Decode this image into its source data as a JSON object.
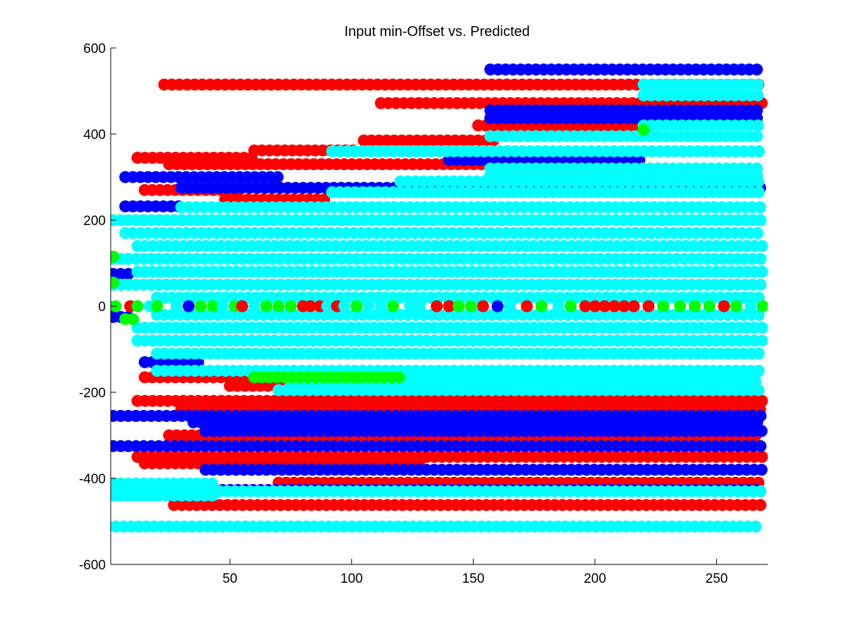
{
  "chart_data": {
    "type": "scatter",
    "title": "Input min-Offset vs. Predicted",
    "xlabel": "",
    "ylabel": "",
    "xlim": [
      1,
      271
    ],
    "ylim": [
      -600,
      600
    ],
    "x_ticks": [
      50,
      100,
      150,
      200,
      250
    ],
    "y_ticks": [
      -600,
      -400,
      -200,
      0,
      200,
      400,
      600
    ],
    "grid": false,
    "legend": "none",
    "colors": {
      "red": "#ff0000",
      "blue": "#0000ff",
      "green": "#00ff00",
      "cyan": "#00ffff",
      "axis": "#000000",
      "background": "#ffffff"
    },
    "marker_spacing_x": 3.13,
    "series": [
      {
        "color": "red",
        "marker": "filled-circle",
        "rows": [
          {
            "y": 515,
            "x": [
              23,
              269
            ]
          },
          {
            "y": 472,
            "x": [
              112,
              269
            ]
          },
          {
            "y": 420,
            "x": [
              152,
              219
            ]
          },
          {
            "y": 385,
            "x": [
              105,
              160
            ]
          },
          {
            "y": 362,
            "x": [
              60,
              103
            ]
          },
          {
            "y": 345,
            "x": [
              12,
              60
            ]
          },
          {
            "y": 330,
            "x": [
              25,
              175
            ]
          },
          {
            "y": 270,
            "x": [
              15,
              55
            ]
          },
          {
            "y": 248,
            "x": [
              48,
              90
            ]
          },
          {
            "y": -165,
            "x": [
              15,
              70
            ]
          },
          {
            "y": -185,
            "x": [
              50,
              99
            ]
          },
          {
            "y": -220,
            "x": [
              12,
              269
            ]
          },
          {
            "y": -240,
            "x": [
              30,
              269
            ]
          },
          {
            "y": -300,
            "x": [
              25,
              269
            ]
          },
          {
            "y": -350,
            "x": [
              12,
              269
            ]
          },
          {
            "y": -365,
            "x": [
              15,
              130
            ]
          },
          {
            "y": -410,
            "x": [
              70,
              269
            ]
          },
          {
            "y": -462,
            "x": [
              27,
              269
            ]
          }
        ]
      },
      {
        "color": "blue",
        "marker": "filled-circle",
        "rows": [
          {
            "y": 550,
            "x": [
              157,
              269
            ]
          },
          {
            "y": 455,
            "x": [
              157,
              269
            ]
          },
          {
            "y": 437,
            "x": [
              157,
              269
            ]
          },
          {
            "y": 340,
            "x": [
              140,
              219
            ]
          },
          {
            "y": 300,
            "x": [
              7,
              70
            ]
          },
          {
            "y": 275,
            "x": [
              30,
              269
            ]
          },
          {
            "y": 232,
            "x": [
              7,
              30
            ]
          },
          {
            "y": 75,
            "x": [
              2,
              10
            ]
          },
          {
            "y": -25,
            "x": [
              2,
              10
            ]
          },
          {
            "y": -130,
            "x": [
              15,
              40
            ]
          },
          {
            "y": -180,
            "x": [
              120,
              170
            ]
          },
          {
            "y": -255,
            "x": [
              2,
              269
            ]
          },
          {
            "y": -270,
            "x": [
              35,
              269
            ]
          },
          {
            "y": -290,
            "x": [
              40,
              269
            ]
          },
          {
            "y": -325,
            "x": [
              2,
              269
            ]
          },
          {
            "y": -380,
            "x": [
              40,
              269
            ]
          },
          {
            "y": -427,
            "x": [
              0,
              269
            ]
          }
        ]
      },
      {
        "color": "cyan",
        "marker": "filled-circle",
        "rows": [
          {
            "y": 515,
            "x": [
              220,
              269
            ]
          },
          {
            "y": 490,
            "x": [
              220,
              269
            ]
          },
          {
            "y": 420,
            "x": [
              220,
              269
            ]
          },
          {
            "y": 395,
            "x": [
              157,
              269
            ]
          },
          {
            "y": 360,
            "x": [
              92,
              269
            ]
          },
          {
            "y": 320,
            "x": [
              157,
              269
            ]
          },
          {
            "y": 305,
            "x": [
              157,
              269
            ]
          },
          {
            "y": 290,
            "x": [
              120,
              269
            ]
          },
          {
            "y": 265,
            "x": [
              92,
              269
            ]
          },
          {
            "y": 230,
            "x": [
              30,
              269
            ]
          },
          {
            "y": 200,
            "x": [
              2,
              269
            ]
          },
          {
            "y": 170,
            "x": [
              7,
              269
            ]
          },
          {
            "y": 140,
            "x": [
              12,
              269
            ]
          },
          {
            "y": 110,
            "x": [
              2,
              269
            ]
          },
          {
            "y": 80,
            "x": [
              12,
              269
            ]
          },
          {
            "y": 50,
            "x": [
              2,
              269
            ]
          },
          {
            "y": 20,
            "x": [
              20,
              269
            ]
          },
          {
            "y": -20,
            "x": [
              20,
              269
            ]
          },
          {
            "y": -50,
            "x": [
              12,
              269
            ]
          },
          {
            "y": -80,
            "x": [
              12,
              269
            ]
          },
          {
            "y": -110,
            "x": [
              20,
              269
            ]
          },
          {
            "y": -150,
            "x": [
              20,
              269
            ]
          },
          {
            "y": -175,
            "x": [
              75,
              269
            ]
          },
          {
            "y": -195,
            "x": [
              70,
              269
            ]
          },
          {
            "y": -430,
            "x": [
              2,
              269
            ]
          },
          {
            "y": -412,
            "x": [
              2,
              45
            ]
          },
          {
            "y": -440,
            "x": [
              2,
              45
            ]
          },
          {
            "y": -512,
            "x": [
              0,
              269
            ]
          }
        ]
      },
      {
        "color": "green",
        "marker": "filled-circle",
        "rows": [
          {
            "y": 115,
            "x": [
              2,
              5
            ]
          },
          {
            "y": 55,
            "x": [
              2,
              5
            ]
          },
          {
            "y": 0,
            "x": [
              0,
              2
            ]
          },
          {
            "y": -30,
            "x": [
              7,
              12
            ]
          },
          {
            "y": -165,
            "x": [
              60,
              120
            ]
          },
          {
            "y": 410,
            "x": [
              220,
              221
            ]
          }
        ]
      }
    ],
    "zero_line_markers": {
      "y": 0,
      "x": [
        0,
        3,
        9,
        12,
        17,
        20,
        28,
        33,
        38,
        43,
        47,
        52,
        55,
        60,
        65,
        70,
        75,
        80,
        83,
        87,
        90,
        94,
        97,
        102,
        107,
        112,
        117,
        124,
        128,
        135,
        140,
        144,
        149,
        154,
        160,
        165,
        172,
        178,
        185,
        190,
        196,
        200,
        204,
        208,
        212,
        216,
        222,
        228,
        235,
        241,
        247,
        253,
        258,
        264,
        269
      ],
      "colors": [
        "red",
        "green",
        "red",
        "green",
        "cyan",
        "green",
        "cyan",
        "blue",
        "green",
        "green",
        "cyan",
        "green",
        "red",
        "cyan",
        "green",
        "green",
        "green",
        "red",
        "red",
        "red",
        "cyan",
        "red",
        "cyan",
        "green",
        "cyan",
        "cyan",
        "green",
        "cyan",
        "cyan",
        "red",
        "red",
        "green",
        "green",
        "red",
        "blue",
        "cyan",
        "red",
        "green",
        "cyan",
        "green",
        "red",
        "red",
        "red",
        "red",
        "red",
        "red",
        "red",
        "green",
        "green",
        "green",
        "green",
        "red",
        "green",
        "cyan",
        "green"
      ]
    }
  }
}
